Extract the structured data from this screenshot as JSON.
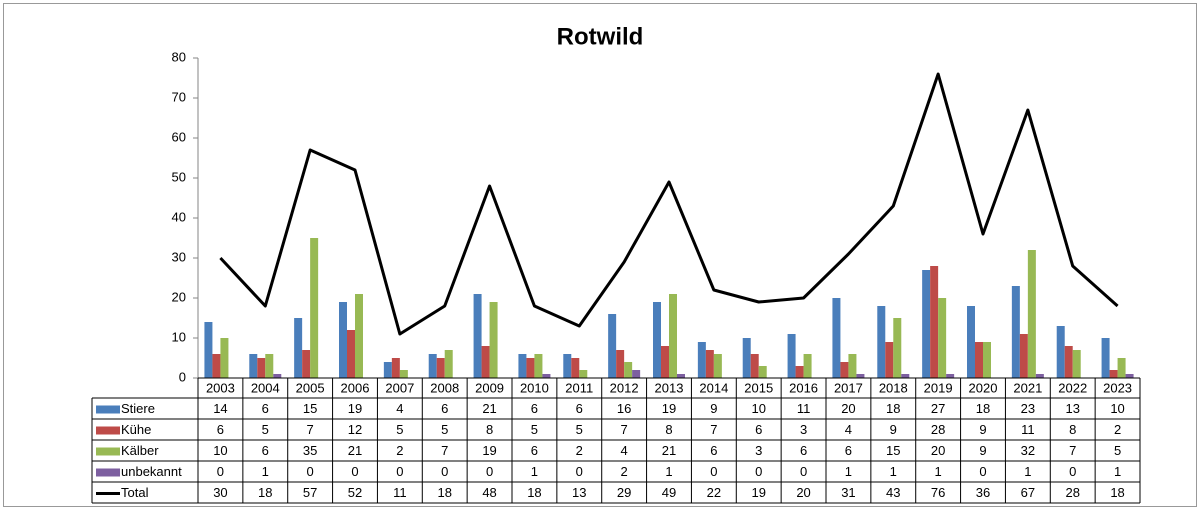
{
  "chart_data": {
    "type": "bar",
    "title": "Rotwild",
    "categories": [
      "2003",
      "2004",
      "2005",
      "2006",
      "2007",
      "2008",
      "2009",
      "2010",
      "2011",
      "2012",
      "2013",
      "2014",
      "2015",
      "2016",
      "2017",
      "2018",
      "2019",
      "2020",
      "2021",
      "2022",
      "2023"
    ],
    "series": [
      {
        "name": "Stiere",
        "color": "#4a7ebb",
        "values": [
          14,
          6,
          15,
          19,
          4,
          6,
          21,
          6,
          6,
          16,
          19,
          9,
          10,
          11,
          20,
          18,
          27,
          18,
          23,
          13,
          10
        ]
      },
      {
        "name": "Kühe",
        "color": "#be4b48",
        "values": [
          6,
          5,
          7,
          12,
          5,
          5,
          8,
          5,
          5,
          7,
          8,
          7,
          6,
          3,
          4,
          9,
          28,
          9,
          11,
          8,
          2
        ]
      },
      {
        "name": "Kälber",
        "color": "#98b954",
        "values": [
          10,
          6,
          35,
          21,
          2,
          7,
          19,
          6,
          2,
          4,
          21,
          6,
          3,
          6,
          6,
          15,
          20,
          9,
          32,
          7,
          5
        ]
      },
      {
        "name": "unbekannt",
        "color": "#7d5fa0",
        "values": [
          0,
          1,
          0,
          0,
          0,
          0,
          0,
          1,
          0,
          2,
          1,
          0,
          0,
          0,
          1,
          1,
          1,
          0,
          1,
          0,
          1
        ]
      },
      {
        "name": "Total",
        "color": "#000000",
        "style": "line",
        "values": [
          30,
          18,
          57,
          52,
          11,
          18,
          48,
          18,
          13,
          29,
          49,
          22,
          19,
          20,
          31,
          43,
          76,
          36,
          67,
          28,
          18
        ]
      }
    ],
    "ylim": [
      0,
      80
    ],
    "yticks": [
      0,
      10,
      20,
      30,
      40,
      50,
      60,
      70,
      80
    ],
    "grid": false,
    "data_table": true
  }
}
